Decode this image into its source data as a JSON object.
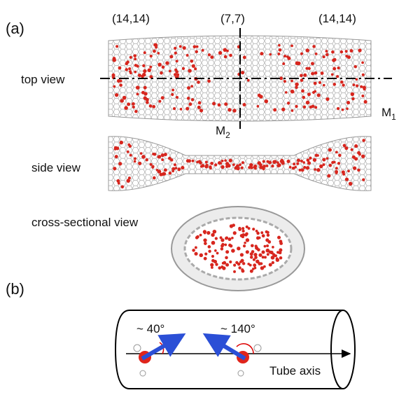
{
  "panel_a": {
    "label": "(a)",
    "chirality": [
      "(14,14)",
      "(7,7)",
      "(14,14)"
    ],
    "views": {
      "top": "top view",
      "side": "side view",
      "cross": "cross-sectional view"
    },
    "mirror_planes": [
      {
        "symbol": "M",
        "subscript": "1"
      },
      {
        "symbol": "M",
        "subscript": "2"
      }
    ]
  },
  "panel_b": {
    "label": "(b)",
    "angles": [
      "~ 40°",
      "~ 140°"
    ],
    "axis_label": "Tube axis"
  }
}
